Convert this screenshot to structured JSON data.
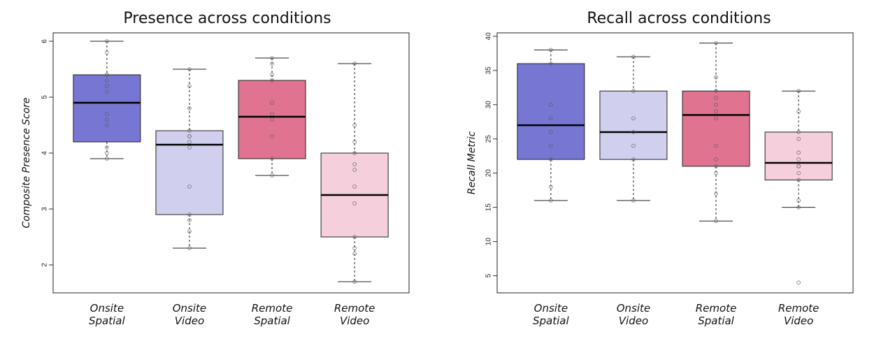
{
  "chart_data": [
    {
      "type": "box",
      "title": "Presence across conditions",
      "xlabel": "",
      "ylabel": "Composite Presence Score",
      "categories": [
        [
          "Onsite",
          "Spatial"
        ],
        [
          "Onsite",
          "Video"
        ],
        [
          "Remote",
          "Spatial"
        ],
        [
          "Remote",
          "Video"
        ]
      ],
      "ylim": [
        1.5,
        6.15
      ],
      "yticks": [
        "2",
        "3",
        "4",
        "5",
        "6"
      ],
      "colors": [
        "#7777d3",
        "#d0d0ee",
        "#e07490",
        "#f5d0dc"
      ],
      "series": [
        {
          "whisker_low": 3.9,
          "q1": 4.2,
          "median": 4.9,
          "q3": 5.4,
          "whisker_high": 6.0,
          "points": [
            3.9,
            4.0,
            4.1,
            4.5,
            4.6,
            4.7,
            5.1,
            5.2,
            5.3,
            5.4,
            5.4,
            5.8,
            6.0
          ]
        },
        {
          "whisker_low": 2.3,
          "q1": 2.9,
          "median": 4.15,
          "q3": 4.4,
          "whisker_high": 5.5,
          "points": [
            2.3,
            2.6,
            2.8,
            2.9,
            3.4,
            4.1,
            4.2,
            4.3,
            4.3,
            4.4,
            4.8,
            5.2,
            5.5
          ]
        },
        {
          "whisker_low": 3.6,
          "q1": 3.9,
          "median": 4.65,
          "q3": 5.3,
          "whisker_high": 5.7,
          "points": [
            3.6,
            3.9,
            4.3,
            4.6,
            4.7,
            4.9,
            5.3,
            5.4,
            5.6,
            5.7
          ]
        },
        {
          "whisker_low": 1.7,
          "q1": 2.5,
          "median": 3.25,
          "q3": 4.0,
          "whisker_high": 5.6,
          "points": [
            1.7,
            2.2,
            2.3,
            2.5,
            3.1,
            3.4,
            3.7,
            3.8,
            4.0,
            4.2,
            4.5,
            5.6
          ]
        }
      ]
    },
    {
      "type": "box",
      "title": "Recall across conditions",
      "xlabel": "",
      "ylabel": "Recall Metric",
      "categories": [
        [
          "Onsite",
          "Spatial"
        ],
        [
          "Onsite",
          "Video"
        ],
        [
          "Remote",
          "Spatial"
        ],
        [
          "Remote",
          "Video"
        ]
      ],
      "ylim": [
        2.5,
        40.5
      ],
      "yticks": [
        "5",
        "10",
        "15",
        "20",
        "25",
        "30",
        "35",
        "40"
      ],
      "colors": [
        "#7777d3",
        "#d0d0ee",
        "#e07490",
        "#f5d0dc"
      ],
      "series": [
        {
          "whisker_low": 16,
          "q1": 22,
          "median": 27,
          "q3": 36,
          "whisker_high": 38,
          "points": [
            16,
            18,
            22,
            24,
            26,
            28,
            30,
            36,
            38
          ]
        },
        {
          "whisker_low": 16,
          "q1": 22,
          "median": 26,
          "q3": 32,
          "whisker_high": 37,
          "points": [
            16,
            22,
            24,
            26,
            28,
            32,
            37
          ]
        },
        {
          "whisker_low": 13,
          "q1": 21,
          "median": 28.5,
          "q3": 32,
          "whisker_high": 39,
          "points": [
            13,
            17,
            20,
            21,
            22,
            24,
            28,
            29,
            30,
            31,
            32,
            34,
            39
          ]
        },
        {
          "whisker_low": 15,
          "q1": 19,
          "median": 21.5,
          "q3": 26,
          "whisker_high": 32,
          "outliers": [
            4
          ],
          "points": [
            4,
            15,
            16,
            19,
            20,
            21,
            21,
            22,
            23,
            25,
            26,
            29,
            32
          ]
        }
      ]
    }
  ]
}
